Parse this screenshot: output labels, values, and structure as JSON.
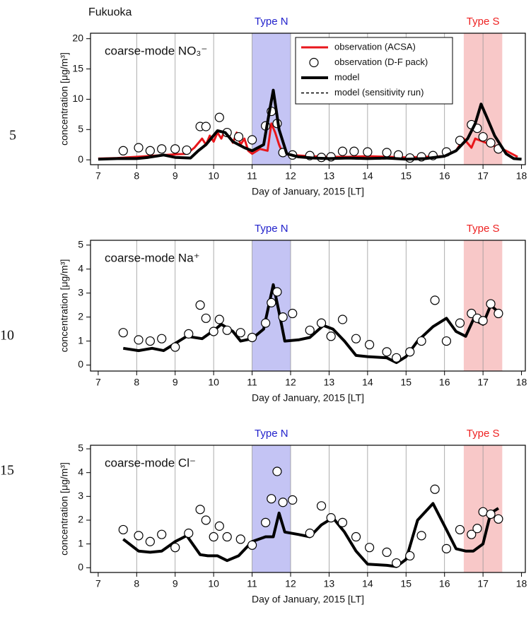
{
  "line_numbers": [
    "5",
    "10",
    "15"
  ],
  "chart_data": [
    {
      "type": "line",
      "title": "Fukuoka",
      "label": "coarse-mode NO₃⁻",
      "xlabel": "Day of January, 2015 [LT]",
      "ylabel": "concentration [μg/m³]",
      "xlim": [
        6.8,
        18.1
      ],
      "xticks": [
        7,
        8,
        9,
        10,
        11,
        12,
        13,
        14,
        15,
        16,
        17,
        18
      ],
      "ylim": [
        -0.8,
        20.9
      ],
      "yticks": [
        0,
        5,
        10,
        15,
        20
      ],
      "grid": "x",
      "legend": "upper-right",
      "regions": [
        {
          "label": "Type N",
          "range": [
            11,
            12
          ],
          "color": "#c4c4f4",
          "label_color": "#2222cc"
        },
        {
          "label": "Type S",
          "range": [
            16.5,
            17.5
          ],
          "color": "#f8c8c8",
          "label_color": "#ee2222"
        }
      ],
      "series": [
        {
          "name": "observation (ACSA)",
          "color": "#e8161b",
          "style": "line",
          "width": 3,
          "x": [
            7.0,
            7.5,
            8.0,
            8.5,
            9.0,
            9.3,
            9.5,
            9.7,
            9.8,
            9.9,
            10.0,
            10.1,
            10.2,
            10.3,
            10.4,
            10.5,
            10.6,
            10.7,
            10.8,
            10.9,
            11.0,
            11.2,
            11.4,
            11.5,
            11.6,
            11.7,
            11.8,
            12.0,
            12.5,
            13.0,
            13.5,
            14.0,
            14.5,
            15.0,
            15.5,
            16.0,
            16.3,
            16.5,
            16.7,
            16.8,
            17.0,
            17.2,
            17.4,
            17.6,
            17.9
          ],
          "values": [
            0.2,
            0.3,
            0.5,
            0.7,
            0.9,
            1.0,
            2.0,
            3.5,
            2.5,
            4.0,
            3.0,
            4.5,
            3.5,
            5.0,
            4.0,
            2.8,
            4.5,
            2.5,
            3.5,
            1.5,
            1.0,
            1.8,
            1.5,
            6.0,
            4.5,
            2.5,
            1.0,
            0.8,
            0.6,
            0.5,
            0.5,
            0.6,
            0.5,
            0.4,
            0.5,
            0.6,
            1.5,
            3.5,
            2.0,
            3.5,
            3.0,
            2.5,
            2.0,
            1.5,
            0.5
          ]
        },
        {
          "name": "observation (D-F pack)",
          "color": "#000000",
          "style": "marker",
          "x": [
            7.65,
            8.05,
            8.35,
            8.65,
            9.0,
            9.3,
            9.65,
            9.8,
            10.15,
            10.35,
            10.65,
            11.0,
            11.35,
            11.5,
            11.65,
            11.8,
            12.05,
            12.5,
            12.8,
            13.05,
            13.35,
            13.65,
            14.0,
            14.5,
            14.8,
            15.1,
            15.4,
            15.7,
            16.05,
            16.4,
            16.7,
            16.85,
            17.0,
            17.2,
            17.4
          ],
          "values": [
            1.5,
            2.0,
            1.5,
            1.8,
            1.8,
            1.6,
            5.5,
            5.5,
            7.0,
            4.5,
            3.8,
            3.3,
            5.6,
            8.0,
            6.0,
            1.2,
            0.8,
            0.7,
            0.4,
            0.5,
            1.4,
            1.4,
            1.3,
            1.2,
            0.8,
            0.3,
            0.5,
            0.7,
            1.3,
            3.2,
            5.8,
            5.2,
            3.8,
            2.8,
            1.8
          ]
        },
        {
          "name": "model",
          "color": "#000000",
          "style": "line",
          "width": 4,
          "x": [
            7.0,
            7.5,
            8.0,
            8.3,
            8.7,
            9.0,
            9.4,
            9.6,
            9.8,
            10.1,
            10.3,
            10.5,
            10.8,
            11.0,
            11.3,
            11.45,
            11.55,
            11.7,
            11.9,
            12.2,
            12.6,
            13.0,
            13.5,
            14.0,
            14.5,
            15.0,
            15.5,
            16.0,
            16.3,
            16.6,
            16.8,
            16.95,
            17.1,
            17.3,
            17.6,
            17.8,
            18.0
          ],
          "values": [
            0.1,
            0.2,
            0.2,
            0.4,
            0.8,
            0.4,
            0.3,
            1.5,
            2.5,
            4.8,
            4.5,
            3.0,
            2.0,
            1.5,
            2.5,
            8.0,
            11.5,
            5.0,
            1.0,
            0.5,
            0.3,
            0.2,
            0.3,
            0.2,
            0.3,
            0.1,
            0.2,
            0.6,
            1.5,
            3.5,
            6.0,
            9.2,
            7.0,
            4.0,
            1.0,
            0.2,
            0.1
          ]
        },
        {
          "name": "model (sensitivity run)",
          "color": "#000000",
          "style": "dashed",
          "width": 1.5,
          "x": [
            13.5,
            14.0,
            14.5,
            15.0
          ],
          "values": [
            0.2,
            0.1,
            0.15,
            0.1
          ]
        }
      ]
    },
    {
      "type": "line",
      "label": "coarse-mode Na⁺",
      "xlabel": "Day of January, 2015 [LT]",
      "ylabel": "concentration [μg/m³]",
      "xlim": [
        6.8,
        18.1
      ],
      "xticks": [
        7,
        8,
        9,
        10,
        11,
        12,
        13,
        14,
        15,
        16,
        17,
        18
      ],
      "ylim": [
        -0.25,
        5.2
      ],
      "yticks": [
        0,
        1,
        2,
        3,
        4,
        5
      ],
      "grid": "x",
      "regions": [
        {
          "label": "Type N",
          "range": [
            11,
            12
          ],
          "color": "#c4c4f4",
          "label_color": "#2222cc"
        },
        {
          "label": "Type S",
          "range": [
            16.5,
            17.5
          ],
          "color": "#f8c8c8",
          "label_color": "#ee2222"
        }
      ],
      "series": [
        {
          "color": "#000000",
          "style": "line",
          "width": 4,
          "x": [
            7.65,
            8.05,
            8.4,
            8.7,
            9.0,
            9.3,
            9.7,
            10.05,
            10.2,
            10.5,
            10.7,
            11.0,
            11.3,
            11.55,
            11.7,
            11.85,
            12.2,
            12.5,
            12.85,
            13.1,
            13.4,
            13.7,
            14.0,
            14.5,
            14.75,
            15.0,
            15.3,
            15.7,
            16.05,
            16.3,
            16.55,
            16.75,
            17.0,
            17.2,
            17.4
          ],
          "values": [
            0.7,
            0.6,
            0.7,
            0.6,
            0.9,
            1.2,
            1.1,
            1.5,
            1.7,
            1.4,
            1.0,
            1.1,
            1.5,
            3.35,
            2.2,
            1.0,
            1.05,
            1.15,
            1.65,
            1.5,
            1.0,
            0.4,
            0.35,
            0.3,
            0.1,
            0.35,
            1.0,
            1.6,
            1.95,
            1.4,
            1.2,
            1.9,
            1.7,
            2.5,
            2.2
          ]
        },
        {
          "color": "#000000",
          "style": "marker",
          "x": [
            7.65,
            8.05,
            8.35,
            8.65,
            9.0,
            9.35,
            9.65,
            9.8,
            10.0,
            10.15,
            10.35,
            10.7,
            11.0,
            11.35,
            11.5,
            11.65,
            11.8,
            12.05,
            12.5,
            12.8,
            13.05,
            13.35,
            13.7,
            14.05,
            14.5,
            14.75,
            15.1,
            15.4,
            15.75,
            16.05,
            16.4,
            16.7,
            16.85,
            17.0,
            17.2,
            17.4
          ],
          "values": [
            1.35,
            1.05,
            1.0,
            1.1,
            0.75,
            1.3,
            2.5,
            1.95,
            1.4,
            1.9,
            1.45,
            1.35,
            1.15,
            1.75,
            2.6,
            3.05,
            2.0,
            2.15,
            1.45,
            1.75,
            1.2,
            1.9,
            1.1,
            0.85,
            0.55,
            0.3,
            0.55,
            1.0,
            2.7,
            1.0,
            1.75,
            2.15,
            1.95,
            1.85,
            2.55,
            2.15
          ]
        }
      ]
    },
    {
      "type": "line",
      "label": "coarse-mode Cl⁻",
      "xlabel": "Day of January, 2015 [LT]",
      "ylabel": "concentration [μg/m³]",
      "xlim": [
        6.8,
        18.1
      ],
      "xticks": [
        7,
        8,
        9,
        10,
        11,
        12,
        13,
        14,
        15,
        16,
        17,
        18
      ],
      "ylim": [
        -0.2,
        5.15
      ],
      "yticks": [
        0,
        1,
        2,
        3,
        4,
        5
      ],
      "grid": "x",
      "regions": [
        {
          "label": "Type N",
          "range": [
            11,
            12
          ],
          "color": "#c4c4f4",
          "label_color": "#2222cc"
        },
        {
          "label": "Type S",
          "range": [
            16.5,
            17.5
          ],
          "color": "#f8c8c8",
          "label_color": "#ee2222"
        }
      ],
      "series": [
        {
          "color": "#000000",
          "style": "line",
          "width": 4,
          "x": [
            7.65,
            8.05,
            8.35,
            8.65,
            9.0,
            9.3,
            9.65,
            9.85,
            10.1,
            10.35,
            10.65,
            11.0,
            11.35,
            11.55,
            11.7,
            11.85,
            12.2,
            12.5,
            12.8,
            13.1,
            13.4,
            13.7,
            14.0,
            14.5,
            14.75,
            15.0,
            15.3,
            15.7,
            16.05,
            16.3,
            16.55,
            16.75,
            17.0,
            17.2,
            17.4
          ],
          "values": [
            1.2,
            0.7,
            0.65,
            0.7,
            1.1,
            1.35,
            0.55,
            0.5,
            0.5,
            0.3,
            0.5,
            1.1,
            1.3,
            1.3,
            2.3,
            1.5,
            1.4,
            1.3,
            1.8,
            2.1,
            1.5,
            0.7,
            0.15,
            0.1,
            0.05,
            0.35,
            2.0,
            2.7,
            1.6,
            0.8,
            0.7,
            0.7,
            1.0,
            2.3,
            2.5
          ]
        },
        {
          "color": "#000000",
          "style": "marker",
          "x": [
            7.65,
            8.05,
            8.35,
            8.65,
            9.0,
            9.35,
            9.65,
            9.8,
            10.0,
            10.15,
            10.35,
            10.7,
            11.0,
            11.35,
            11.5,
            11.65,
            11.8,
            12.05,
            12.5,
            12.8,
            13.05,
            13.35,
            13.7,
            14.05,
            14.5,
            14.75,
            15.1,
            15.4,
            15.75,
            16.05,
            16.4,
            16.7,
            16.85,
            17.0,
            17.2,
            17.4
          ],
          "values": [
            1.6,
            1.35,
            1.1,
            1.4,
            0.85,
            1.45,
            2.45,
            2.0,
            1.3,
            1.75,
            1.3,
            1.2,
            0.95,
            1.9,
            2.9,
            4.05,
            2.75,
            2.85,
            1.45,
            2.6,
            2.1,
            1.9,
            1.3,
            0.85,
            0.65,
            0.2,
            0.5,
            1.35,
            3.3,
            0.8,
            1.6,
            1.4,
            1.65,
            2.35,
            2.25,
            2.05
          ]
        }
      ]
    }
  ]
}
